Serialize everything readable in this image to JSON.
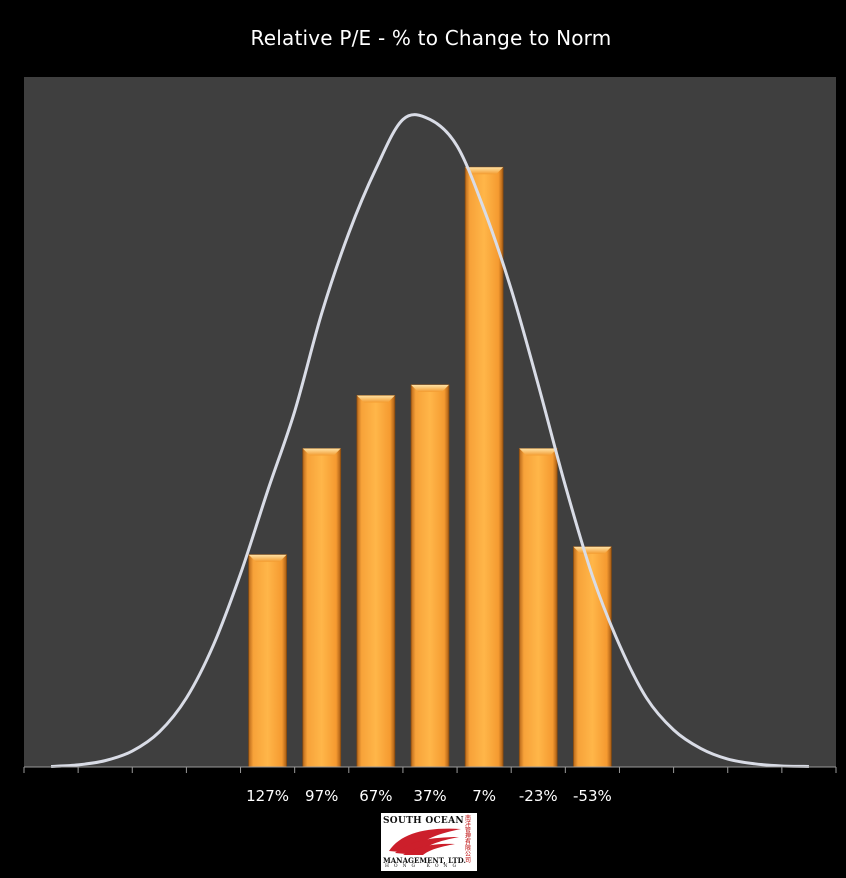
{
  "colors": {
    "background": "#000000",
    "plot_area": "#3f3f3f",
    "bar": "#f7a239",
    "curve": "#d9dce6",
    "text": "#ffffff",
    "logo_red": "#cc1f2b"
  },
  "chart_data": {
    "type": "bar",
    "title": "Relative P/E - % to Change to Norm",
    "xlabel": "",
    "ylabel": "",
    "categories": [
      "",
      "",
      "",
      "",
      "127%",
      "97%",
      "67%",
      "37%",
      "7%",
      "-23%",
      "-53%",
      "",
      "",
      "",
      ""
    ],
    "values": [
      0,
      0,
      0,
      0,
      4,
      6,
      7,
      7.2,
      11.3,
      6,
      4.15,
      0,
      0,
      0,
      0
    ],
    "ylim": [
      0,
      13
    ],
    "grid": false,
    "legend": "none",
    "overlay": {
      "type": "line",
      "shape": "normal curve",
      "x": [
        0.5,
        1,
        1.5,
        2,
        2.5,
        3,
        3.5,
        4,
        4.5,
        5,
        5.5,
        6,
        6.5,
        7,
        7.5,
        8,
        8.5,
        9,
        9.5,
        10,
        10.5,
        11,
        11.5,
        12,
        12.5,
        13,
        13.5,
        14,
        14.5
      ],
      "values": [
        0.01,
        0.04,
        0.12,
        0.3,
        0.66,
        1.3,
        2.3,
        3.64,
        5.2,
        6.7,
        8.55,
        10.06,
        11.27,
        12.2,
        12.2,
        11.7,
        10.5,
        9.0,
        7.2,
        5.3,
        3.6,
        2.3,
        1.3,
        0.7,
        0.35,
        0.15,
        0.06,
        0.02,
        0.01
      ]
    }
  },
  "logo": {
    "line1": "SOUTH OCEAN",
    "line2": "MANAGEMENT, LTD.",
    "line3": "HONG KONG",
    "side_text": "南洋管理有限公司"
  }
}
